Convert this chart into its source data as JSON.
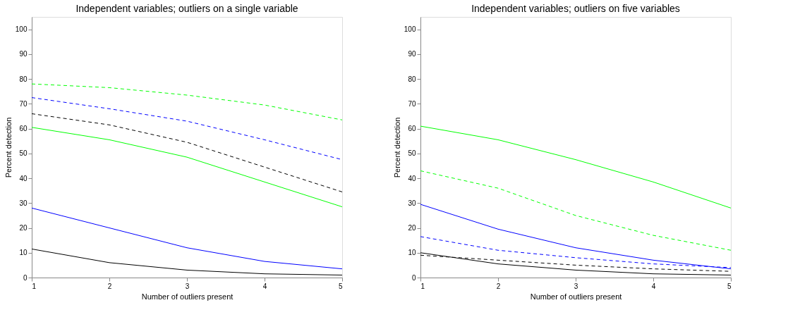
{
  "chart_data": [
    {
      "type": "line",
      "title": "Independent variables; outliers on a single variable",
      "xlabel": "Number of outliers present",
      "ylabel": "Percent detection",
      "x": [
        1,
        2,
        3,
        4,
        5
      ],
      "xlim": [
        1,
        5
      ],
      "xticks": [
        1,
        2,
        3,
        4,
        5
      ],
      "ylim": [
        0,
        105
      ],
      "yticks": [
        0,
        10,
        20,
        30,
        40,
        50,
        60,
        70,
        80,
        90,
        100
      ],
      "grid": false,
      "marker": "none",
      "series": [
        {
          "color": "#00ff00",
          "line_style": "dashed",
          "values": [
            78,
            76.5,
            73.5,
            69.5,
            63.5
          ]
        },
        {
          "color": "#0000ff",
          "line_style": "dashed",
          "values": [
            72.5,
            68,
            63,
            55.5,
            47.5
          ]
        },
        {
          "color": "#000000",
          "line_style": "dashed",
          "values": [
            66,
            61.5,
            54.5,
            44.5,
            34.5
          ]
        },
        {
          "color": "#00ff00",
          "line_style": "solid",
          "values": [
            60.5,
            55.5,
            48.5,
            38.5,
            28.5
          ]
        },
        {
          "color": "#0000ff",
          "line_style": "solid",
          "values": [
            28,
            20,
            12,
            6.5,
            3.5
          ]
        },
        {
          "color": "#000000",
          "line_style": "solid",
          "values": [
            11.5,
            6,
            3,
            1.5,
            1
          ]
        }
      ]
    },
    {
      "type": "line",
      "title": "Independent variables; outliers on five variables",
      "xlabel": "Number of outliers present",
      "ylabel": "Percent detection",
      "x": [
        1,
        2,
        3,
        4,
        5
      ],
      "xlim": [
        1,
        5
      ],
      "xticks": [
        1,
        2,
        3,
        4,
        5
      ],
      "ylim": [
        0,
        105
      ],
      "yticks": [
        0,
        10,
        20,
        30,
        40,
        50,
        60,
        70,
        80,
        90,
        100
      ],
      "grid": false,
      "marker": "none",
      "series": [
        {
          "color": "#00ff00",
          "line_style": "solid",
          "values": [
            61,
            55.5,
            47.5,
            38.5,
            28
          ]
        },
        {
          "color": "#00ff00",
          "line_style": "dashed",
          "values": [
            43,
            36,
            25,
            17,
            11
          ]
        },
        {
          "color": "#0000ff",
          "line_style": "solid",
          "values": [
            29.5,
            19.5,
            12,
            7,
            3.5
          ]
        },
        {
          "color": "#0000ff",
          "line_style": "dashed",
          "values": [
            16.5,
            11,
            8,
            5.5,
            4
          ]
        },
        {
          "color": "#000000",
          "line_style": "dashed",
          "values": [
            9,
            7,
            5,
            3.5,
            2.5
          ]
        },
        {
          "color": "#000000",
          "line_style": "solid",
          "values": [
            10,
            5.5,
            3,
            1.5,
            1
          ]
        }
      ]
    }
  ]
}
